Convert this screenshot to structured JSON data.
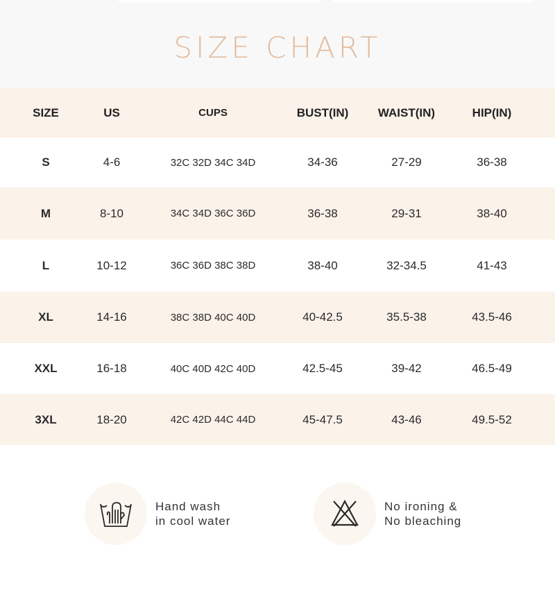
{
  "title": "SIZE CHART",
  "headers": [
    "SIZE",
    "US",
    "CUPS",
    "BUST(IN)",
    "WAIST(IN)",
    "HIP(IN)"
  ],
  "rows": [
    [
      "S",
      "4-6",
      "32C 32D 34C 34D",
      "34-36",
      "27-29",
      "36-38"
    ],
    [
      "M",
      "8-10",
      "34C 34D 36C 36D",
      "36-38",
      "29-31",
      "38-40"
    ],
    [
      "L",
      "10-12",
      "36C 36D 38C 38D",
      "38-40",
      "32-34.5",
      "41-43"
    ],
    [
      "XL",
      "14-16",
      "38C 38D 40C 40D",
      "40-42.5",
      "35.5-38",
      "43.5-46"
    ],
    [
      "XXL",
      "16-18",
      "40C 40D 42C 40D",
      "42.5-45",
      "39-42",
      "46.5-49"
    ],
    [
      "3XL",
      "18-20",
      "42C 42D 44C 44D",
      "45-47.5",
      "43-46",
      "49.5-52"
    ]
  ],
  "care": [
    {
      "icon": "hand-wash-icon",
      "line1": "Hand wash",
      "line2": "in cool water"
    },
    {
      "icon": "no-iron-no-bleach-icon",
      "line1": "No ironing &",
      "line2": "No bleaching"
    }
  ],
  "colors": {
    "title": "#e2bc9f",
    "band": "#fbf2ea",
    "text": "#2a2a2a"
  }
}
